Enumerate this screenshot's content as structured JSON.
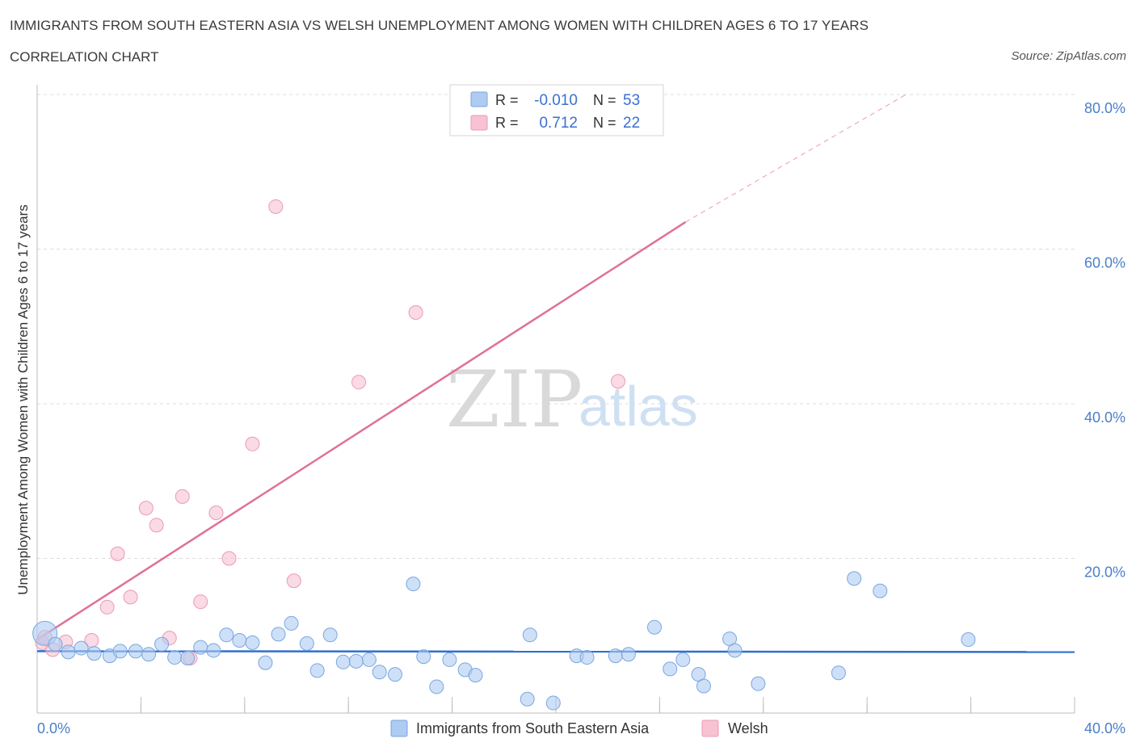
{
  "header": {
    "title": "IMMIGRANTS FROM SOUTH EASTERN ASIA VS WELSH UNEMPLOYMENT AMONG WOMEN WITH CHILDREN AGES 6 TO 17 YEARS",
    "subtitle": "CORRELATION CHART",
    "source": "Source: ZipAtlas.com"
  },
  "watermark": {
    "zip": "ZIP",
    "atlas": "atlas"
  },
  "colors": {
    "blue_fill": "#aecbf2",
    "blue_stroke": "#7aa6e0",
    "blue_line": "#2f6fd0",
    "pink_fill": "#f7c2d2",
    "pink_stroke": "#ec9ab5",
    "pink_line": "#e0709a",
    "grid": "#dcdcdc",
    "axis_text": "#4a7fc8"
  },
  "stats_box": {
    "rows": [
      {
        "r_label": "R =",
        "r_value": "-0.010",
        "n_label": "N =",
        "n_value": "53"
      },
      {
        "r_label": "R =",
        "r_value": "0.712",
        "n_label": "N =",
        "n_value": "22"
      }
    ]
  },
  "chart_data": {
    "type": "scatter",
    "title": "IMMIGRANTS FROM SOUTH EASTERN ASIA VS WELSH UNEMPLOYMENT AMONG WOMEN WITH CHILDREN AGES 6 TO 17 YEARS",
    "xlabel": "",
    "ylabel": "Unemployment Among Women with Children Ages 6 to 17 years",
    "xlim": [
      0,
      40
    ],
    "ylim": [
      0,
      80
    ],
    "x_tick_labels": [
      "0.0%",
      "40.0%"
    ],
    "y_tick_labels": [
      "20.0%",
      "40.0%",
      "60.0%",
      "80.0%"
    ],
    "y_ticks": [
      20,
      40,
      60,
      80
    ],
    "grid": true,
    "legend": {
      "placement": "bottom-center",
      "entries": [
        "Immigrants from South Eastern Asia",
        "Welsh"
      ]
    },
    "series": [
      {
        "name": "Immigrants from South Eastern Asia",
        "color": "blue",
        "r": -0.01,
        "n": 53,
        "trend": {
          "x": [
            0,
            40
          ],
          "y": [
            8.0,
            7.9
          ]
        },
        "points": [
          {
            "x": 0.3,
            "y": 10.3,
            "big": true
          },
          {
            "x": 0.7,
            "y": 8.9
          },
          {
            "x": 1.2,
            "y": 7.9
          },
          {
            "x": 1.7,
            "y": 8.4
          },
          {
            "x": 2.2,
            "y": 7.7
          },
          {
            "x": 2.8,
            "y": 7.4
          },
          {
            "x": 3.2,
            "y": 8.0
          },
          {
            "x": 3.8,
            "y": 8.0
          },
          {
            "x": 4.3,
            "y": 7.6
          },
          {
            "x": 4.8,
            "y": 8.9
          },
          {
            "x": 5.3,
            "y": 7.2
          },
          {
            "x": 5.8,
            "y": 7.1
          },
          {
            "x": 6.3,
            "y": 8.5
          },
          {
            "x": 6.8,
            "y": 8.1
          },
          {
            "x": 7.3,
            "y": 10.1
          },
          {
            "x": 7.8,
            "y": 9.4
          },
          {
            "x": 8.3,
            "y": 9.1
          },
          {
            "x": 8.8,
            "y": 6.5
          },
          {
            "x": 9.3,
            "y": 10.2
          },
          {
            "x": 9.8,
            "y": 11.6
          },
          {
            "x": 10.4,
            "y": 9.0
          },
          {
            "x": 10.8,
            "y": 5.5
          },
          {
            "x": 11.3,
            "y": 10.1
          },
          {
            "x": 11.8,
            "y": 6.6
          },
          {
            "x": 12.3,
            "y": 6.7
          },
          {
            "x": 12.8,
            "y": 6.9
          },
          {
            "x": 13.2,
            "y": 5.3
          },
          {
            "x": 13.8,
            "y": 5.0
          },
          {
            "x": 14.5,
            "y": 16.7
          },
          {
            "x": 14.9,
            "y": 7.3
          },
          {
            "x": 15.4,
            "y": 3.4
          },
          {
            "x": 15.9,
            "y": 6.9
          },
          {
            "x": 16.5,
            "y": 5.6
          },
          {
            "x": 16.9,
            "y": 4.9
          },
          {
            "x": 19.0,
            "y": 10.1
          },
          {
            "x": 18.9,
            "y": 1.8
          },
          {
            "x": 19.9,
            "y": 1.3
          },
          {
            "x": 20.8,
            "y": 7.4
          },
          {
            "x": 21.2,
            "y": 7.2
          },
          {
            "x": 22.3,
            "y": 7.4
          },
          {
            "x": 22.8,
            "y": 7.6
          },
          {
            "x": 23.8,
            "y": 11.1
          },
          {
            "x": 24.4,
            "y": 5.7
          },
          {
            "x": 24.9,
            "y": 6.9
          },
          {
            "x": 25.5,
            "y": 5.0
          },
          {
            "x": 25.7,
            "y": 3.5
          },
          {
            "x": 26.7,
            "y": 9.6
          },
          {
            "x": 26.9,
            "y": 8.1
          },
          {
            "x": 27.8,
            "y": 3.8
          },
          {
            "x": 30.9,
            "y": 5.2
          },
          {
            "x": 31.5,
            "y": 17.4
          },
          {
            "x": 32.5,
            "y": 15.8
          },
          {
            "x": 35.9,
            "y": 9.5
          }
        ]
      },
      {
        "name": "Welsh",
        "color": "pink",
        "r": 0.712,
        "n": 22,
        "trend": {
          "x": [
            0,
            25
          ],
          "y": [
            9.5,
            63.5
          ],
          "dashed_to": {
            "x": 33.5,
            "y": 80.0
          }
        },
        "points": [
          {
            "x": 0.2,
            "y": 9.1
          },
          {
            "x": 0.6,
            "y": 8.2
          },
          {
            "x": 1.1,
            "y": 9.2
          },
          {
            "x": 2.1,
            "y": 9.4
          },
          {
            "x": 2.7,
            "y": 13.7
          },
          {
            "x": 3.1,
            "y": 20.6
          },
          {
            "x": 3.6,
            "y": 15.0
          },
          {
            "x": 4.2,
            "y": 26.5
          },
          {
            "x": 4.6,
            "y": 24.3
          },
          {
            "x": 5.1,
            "y": 9.7
          },
          {
            "x": 5.6,
            "y": 28.0
          },
          {
            "x": 5.9,
            "y": 7.1
          },
          {
            "x": 6.3,
            "y": 14.4
          },
          {
            "x": 6.9,
            "y": 25.9
          },
          {
            "x": 7.4,
            "y": 20.0
          },
          {
            "x": 8.3,
            "y": 34.8
          },
          {
            "x": 9.2,
            "y": 65.5
          },
          {
            "x": 9.9,
            "y": 17.1
          },
          {
            "x": 12.4,
            "y": 42.8
          },
          {
            "x": 14.6,
            "y": 51.8
          },
          {
            "x": 22.4,
            "y": 42.9
          },
          {
            "x": 0.3,
            "y": 9.8
          }
        ]
      }
    ]
  }
}
